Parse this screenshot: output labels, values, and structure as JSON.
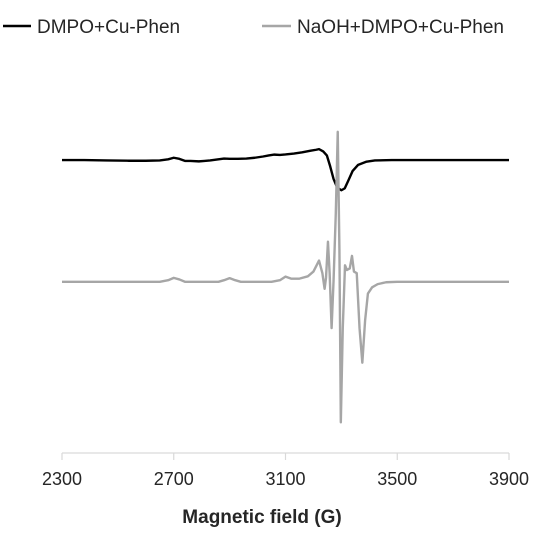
{
  "chart_data": {
    "type": "line",
    "title": "",
    "xlabel": "Magnetic field (G)",
    "ylabel": "",
    "xlim": [
      2300,
      3900
    ],
    "ylim": [
      -1,
      1
    ],
    "grid": false,
    "legend_position": "top",
    "x_ticks": [
      "2300",
      "2700",
      "3100",
      "3500",
      "3900"
    ],
    "x_tick_values": [
      2300,
      2700,
      3100,
      3500,
      3900
    ],
    "series": [
      {
        "name": "DMPO+Cu-Phen",
        "color": "#000000",
        "points": [
          [
            2300,
            0.77
          ],
          [
            2380,
            0.77
          ],
          [
            2460,
            0.768
          ],
          [
            2540,
            0.766
          ],
          [
            2600,
            0.766
          ],
          [
            2650,
            0.768
          ],
          [
            2680,
            0.775
          ],
          [
            2700,
            0.785
          ],
          [
            2720,
            0.778
          ],
          [
            2740,
            0.765
          ],
          [
            2760,
            0.765
          ],
          [
            2790,
            0.762
          ],
          [
            2810,
            0.765
          ],
          [
            2830,
            0.768
          ],
          [
            2860,
            0.775
          ],
          [
            2880,
            0.78
          ],
          [
            2900,
            0.778
          ],
          [
            2930,
            0.778
          ],
          [
            2960,
            0.78
          ],
          [
            2990,
            0.785
          ],
          [
            3020,
            0.793
          ],
          [
            3040,
            0.8
          ],
          [
            3060,
            0.805
          ],
          [
            3080,
            0.803
          ],
          [
            3100,
            0.806
          ],
          [
            3130,
            0.812
          ],
          [
            3160,
            0.82
          ],
          [
            3190,
            0.83
          ],
          [
            3210,
            0.836
          ],
          [
            3220,
            0.84
          ],
          [
            3235,
            0.825
          ],
          [
            3248,
            0.8
          ],
          [
            3260,
            0.73
          ],
          [
            3272,
            0.65
          ],
          [
            3285,
            0.595
          ],
          [
            3300,
            0.578
          ],
          [
            3312,
            0.59
          ],
          [
            3325,
            0.64
          ],
          [
            3340,
            0.7
          ],
          [
            3360,
            0.74
          ],
          [
            3390,
            0.76
          ],
          [
            3420,
            0.768
          ],
          [
            3480,
            0.77
          ],
          [
            3600,
            0.77
          ],
          [
            3700,
            0.77
          ],
          [
            3800,
            0.77
          ],
          [
            3900,
            0.77
          ]
        ]
      },
      {
        "name": "NaOH+DMPO+Cu-Phen",
        "color": "#a6a6a6",
        "points": [
          [
            2300,
            -0.005
          ],
          [
            2400,
            -0.005
          ],
          [
            2500,
            -0.005
          ],
          [
            2600,
            -0.005
          ],
          [
            2650,
            -0.005
          ],
          [
            2680,
            0.005
          ],
          [
            2700,
            0.02
          ],
          [
            2720,
            0.01
          ],
          [
            2740,
            -0.005
          ],
          [
            2800,
            -0.005
          ],
          [
            2860,
            -0.005
          ],
          [
            2880,
            0.005
          ],
          [
            2900,
            0.018
          ],
          [
            2920,
            0.005
          ],
          [
            2940,
            -0.005
          ],
          [
            3000,
            -0.005
          ],
          [
            3050,
            -0.005
          ],
          [
            3080,
            0.005
          ],
          [
            3100,
            0.028
          ],
          [
            3120,
            0.015
          ],
          [
            3150,
            0.015
          ],
          [
            3180,
            0.03
          ],
          [
            3200,
            0.06
          ],
          [
            3220,
            0.13
          ],
          [
            3232,
            0.05
          ],
          [
            3240,
            -0.05
          ],
          [
            3245,
            0.02
          ],
          [
            3252,
            0.25
          ],
          [
            3258,
            0.05
          ],
          [
            3265,
            -0.3
          ],
          [
            3272,
            0.0
          ],
          [
            3280,
            0.43
          ],
          [
            3287,
            0.95
          ],
          [
            3293,
            0.2
          ],
          [
            3298,
            -0.9
          ],
          [
            3305,
            -0.3
          ],
          [
            3313,
            0.1
          ],
          [
            3320,
            0.07
          ],
          [
            3330,
            0.08
          ],
          [
            3338,
            0.16
          ],
          [
            3345,
            0.06
          ],
          [
            3355,
            0.05
          ],
          [
            3365,
            -0.3
          ],
          [
            3375,
            -0.52
          ],
          [
            3385,
            -0.25
          ],
          [
            3395,
            -0.08
          ],
          [
            3410,
            -0.04
          ],
          [
            3430,
            -0.02
          ],
          [
            3460,
            -0.008
          ],
          [
            3500,
            -0.005
          ],
          [
            3600,
            -0.005
          ],
          [
            3700,
            -0.005
          ],
          [
            3800,
            -0.005
          ],
          [
            3900,
            -0.005
          ]
        ]
      }
    ]
  }
}
